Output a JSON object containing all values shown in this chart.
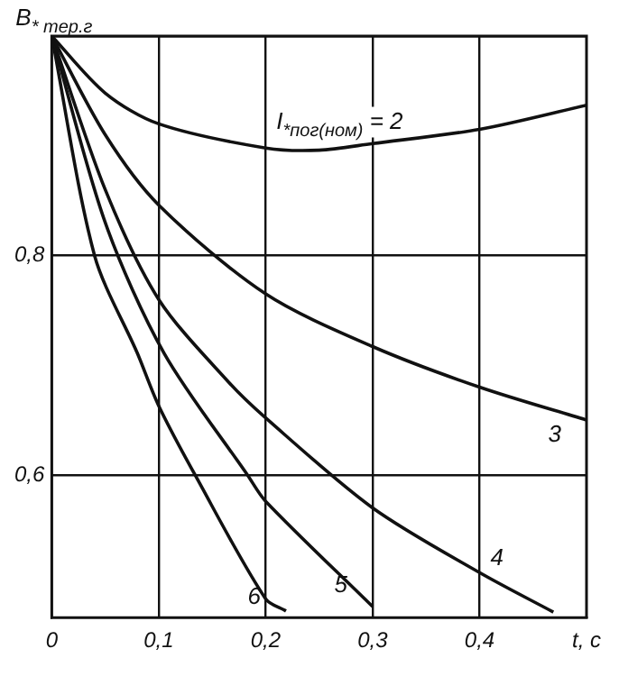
{
  "chart_data": {
    "type": "line",
    "xlabel": "t, c",
    "ylabel": "B$_{* тер.г}$",
    "xlim": [
      0,
      0.5
    ],
    "xticks": [
      {
        "value": 0,
        "label": "0"
      },
      {
        "value": 0.1,
        "label": "0,1"
      },
      {
        "value": 0.2,
        "label": "0,2"
      },
      {
        "value": 0.3,
        "label": "0,3"
      },
      {
        "value": 0.4,
        "label": "0,4"
      }
    ],
    "ylim": [
      0.47,
      1.0
    ],
    "yticks": [
      {
        "value": 0.6,
        "label": "0,6"
      },
      {
        "value": 0.8,
        "label": "0,8"
      },
      {
        "value": 1.0,
        "label": null
      }
    ],
    "grid": true,
    "legend": false,
    "marker": "none",
    "line_style": "solid",
    "series": [
      {
        "name": "I$_{*пог(ном)}$ = 2",
        "color": "#111111",
        "x": [
          0,
          0.05,
          0.1,
          0.2,
          0.25,
          0.3,
          0.4,
          0.5
        ],
        "values": [
          1.0,
          0.948,
          0.92,
          0.898,
          0.896,
          0.902,
          0.915,
          0.937
        ]
      },
      {
        "name": "3",
        "color": "#111111",
        "x": [
          0,
          0.05,
          0.1,
          0.2,
          0.3,
          0.4,
          0.5
        ],
        "values": [
          1.0,
          0.91,
          0.846,
          0.765,
          0.717,
          0.68,
          0.65
        ]
      },
      {
        "name": "4",
        "color": "#111111",
        "x": [
          0,
          0.05,
          0.1,
          0.165,
          0.2,
          0.3,
          0.4,
          0.469
        ],
        "values": [
          1.0,
          0.86,
          0.76,
          0.685,
          0.652,
          0.57,
          0.511,
          0.475
        ]
      },
      {
        "name": "5",
        "color": "#111111",
        "x": [
          0,
          0.05,
          0.105,
          0.183,
          0.2,
          0.3
        ],
        "values": [
          1.0,
          0.83,
          0.711,
          0.6,
          0.576,
          0.48
        ]
      },
      {
        "name": "6",
        "color": "#111111",
        "x": [
          0,
          0.04,
          0.08,
          0.1,
          0.134,
          0.2,
          0.219
        ],
        "values": [
          1.0,
          0.8,
          0.711,
          0.663,
          0.6,
          0.487,
          0.476
        ]
      }
    ]
  }
}
